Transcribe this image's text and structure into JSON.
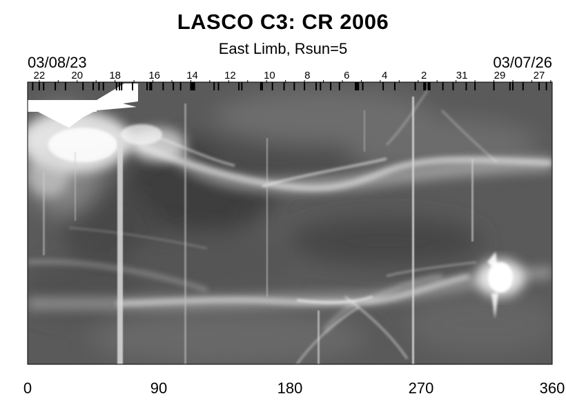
{
  "title": "LASCO C3: CR 2006",
  "subtitle": "East Limb, Rsun=5",
  "date_start": "03/08/23",
  "date_end": "03/07/26",
  "chart_data": {
    "type": "heatmap",
    "colormap": "grayscale",
    "xlim": [
      0,
      360
    ],
    "x_ticks": [
      0,
      90,
      180,
      270,
      360
    ],
    "x_tick_labels": [
      "0",
      "90",
      "180",
      "270",
      "360"
    ],
    "top_day_labels": [
      {
        "label": "22",
        "x": 8
      },
      {
        "label": "20",
        "x": 34
      },
      {
        "label": "18",
        "x": 60
      },
      {
        "label": "16",
        "x": 87
      },
      {
        "label": "14",
        "x": 113
      },
      {
        "label": "12",
        "x": 139
      },
      {
        "label": "10",
        "x": 166
      },
      {
        "label": "8",
        "x": 192
      },
      {
        "label": "6",
        "x": 219
      },
      {
        "label": "4",
        "x": 245
      },
      {
        "label": "2",
        "x": 272
      },
      {
        "label": "31",
        "x": 298
      },
      {
        "label": "29",
        "x": 324
      },
      {
        "label": "27",
        "x": 351
      }
    ],
    "grid": false,
    "legend": "none"
  }
}
